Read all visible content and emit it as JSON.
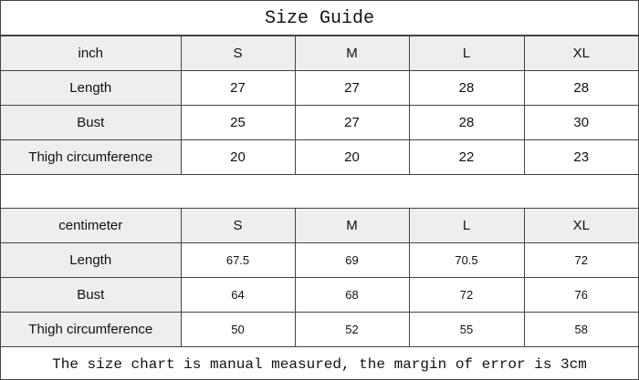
{
  "title": "Size Guide",
  "sizes": [
    "S",
    "M",
    "L",
    "XL"
  ],
  "tables": [
    {
      "unit": "inch",
      "rows": [
        {
          "label": "Length",
          "values": [
            "27",
            "27",
            "28",
            "28"
          ]
        },
        {
          "label": "Bust",
          "values": [
            "25",
            "27",
            "28",
            "30"
          ]
        },
        {
          "label": "Thigh circumference",
          "values": [
            "20",
            "20",
            "22",
            "23"
          ]
        }
      ]
    },
    {
      "unit": "centimeter",
      "rows": [
        {
          "label": "Length",
          "values": [
            "67.5",
            "69",
            "70.5",
            "72"
          ]
        },
        {
          "label": "Bust",
          "values": [
            "64",
            "68",
            "72",
            "76"
          ]
        },
        {
          "label": "Thigh circumference",
          "values": [
            "50",
            "52",
            "55",
            "58"
          ]
        }
      ]
    }
  ],
  "footer": "The size chart is manual measured, the margin of error is 3cm"
}
